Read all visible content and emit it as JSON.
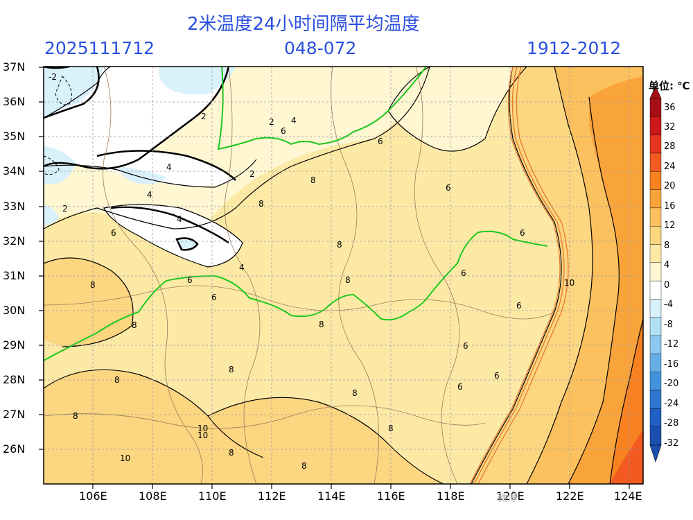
{
  "header": {
    "title": "2米温度24小时间隔平均温度",
    "init_time": "2025111712",
    "forecast_range": "048-072",
    "valid_range": "1912-2012"
  },
  "colorbar": {
    "unit_label": "单位: ℃",
    "ticks": [
      "36",
      "32",
      "28",
      "24",
      "20",
      "16",
      "12",
      "8",
      "4",
      "0",
      "-4",
      "-8",
      "-12",
      "-16",
      "-20",
      "-24",
      "-28",
      "-32"
    ],
    "colors": [
      "#a50f15",
      "#cb181d",
      "#e4351f",
      "#f25a1f",
      "#f7821f",
      "#f9a43a",
      "#fbc15e",
      "#fcd680",
      "#fde9a6",
      "#fff6d2",
      "#ffffff",
      "#d8f1fb",
      "#b2e0f5",
      "#8cc8ef",
      "#66aee6",
      "#4393dc",
      "#2f78d0",
      "#2060c4",
      "#1a4fb0"
    ]
  },
  "axes": {
    "y_labels": [
      "37N",
      "36N",
      "35N",
      "34N",
      "33N",
      "32N",
      "31N",
      "30N",
      "29N",
      "28N",
      "27N",
      "26N"
    ],
    "x_labels": [
      "106E",
      "108E",
      "110E",
      "112E",
      "114E",
      "116E",
      "118E",
      "120E",
      "122E",
      "124E"
    ]
  },
  "contour_labels": [
    "-2",
    "2",
    "2",
    "2",
    "2",
    "4",
    "4",
    "4",
    "4",
    "4",
    "6",
    "6",
    "6",
    "6",
    "6",
    "6",
    "6",
    "6",
    "6",
    "6",
    "6",
    "6",
    "8",
    "8",
    "8",
    "8",
    "8",
    "8",
    "8",
    "8",
    "8",
    "8",
    "8",
    "8",
    "8",
    "8",
    "10",
    "10",
    "10",
    "10"
  ],
  "watermark": "微博"
}
